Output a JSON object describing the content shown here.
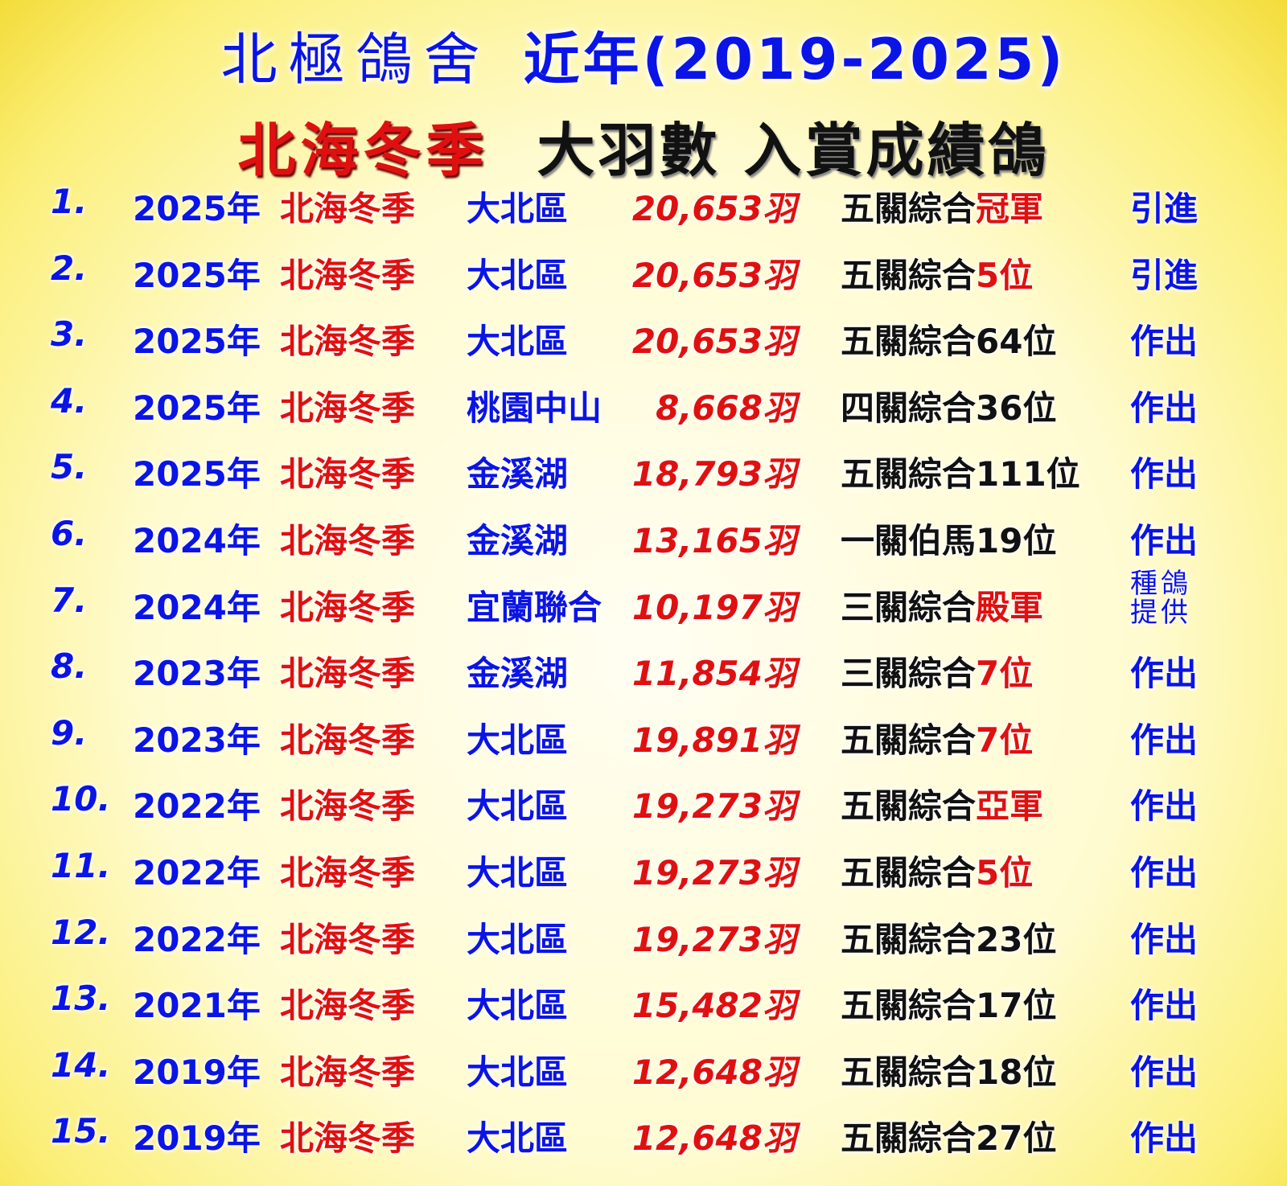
{
  "header": {
    "shop_name": "北極鴿舍",
    "period": "近年(2019-2025)",
    "race_series": "北海冬季",
    "subtitle": "大羽數 入賞成績鴿"
  },
  "colors": {
    "blue": "#0a14e6",
    "red": "#e01010",
    "black": "#111111",
    "background": "#fbef7a"
  },
  "rows": [
    {
      "num": "1.",
      "year": "2025年",
      "race": "北海冬季",
      "region": "大北區",
      "count": "20,653羽",
      "result": "五關綜合",
      "highlight": "冠軍",
      "action": "引進"
    },
    {
      "num": "2.",
      "year": "2025年",
      "race": "北海冬季",
      "region": "大北區",
      "count": "20,653羽",
      "result": "五關綜合",
      "highlight": "5位",
      "action": "引進"
    },
    {
      "num": "3.",
      "year": "2025年",
      "race": "北海冬季",
      "region": "大北區",
      "count": "20,653羽",
      "result": "五關綜合64位",
      "highlight": "",
      "action": "作出"
    },
    {
      "num": "4.",
      "year": "2025年",
      "race": "北海冬季",
      "region": "桃園中山",
      "count": "8,668羽",
      "result": "四關綜合36位",
      "highlight": "",
      "action": "作出"
    },
    {
      "num": "5.",
      "year": "2025年",
      "race": "北海冬季",
      "region": "金溪湖",
      "count": "18,793羽",
      "result": "五關綜合111位",
      "highlight": "",
      "action": "作出"
    },
    {
      "num": "6.",
      "year": "2024年",
      "race": "北海冬季",
      "region": "金溪湖",
      "count": "13,165羽",
      "result": "一關伯馬19位",
      "highlight": "",
      "action": "作出"
    },
    {
      "num": "7.",
      "year": "2024年",
      "race": "北海冬季",
      "region": "宜蘭聯合",
      "count": "10,197羽",
      "result": "三關綜合",
      "highlight": "殿軍",
      "action": "種鴿提供"
    },
    {
      "num": "8.",
      "year": "2023年",
      "race": "北海冬季",
      "region": "金溪湖",
      "count": "11,854羽",
      "result": "三關綜合",
      "highlight": "7位",
      "action": "作出"
    },
    {
      "num": "9.",
      "year": "2023年",
      "race": "北海冬季",
      "region": "大北區",
      "count": "19,891羽",
      "result": "五關綜合",
      "highlight": "7位",
      "action": "作出"
    },
    {
      "num": "10.",
      "year": "2022年",
      "race": "北海冬季",
      "region": "大北區",
      "count": "19,273羽",
      "result": "五關綜合",
      "highlight": "亞軍",
      "action": "作出"
    },
    {
      "num": "11.",
      "year": "2022年",
      "race": "北海冬季",
      "region": "大北區",
      "count": "19,273羽",
      "result": "五關綜合",
      "highlight": "5位",
      "action": "作出"
    },
    {
      "num": "12.",
      "year": "2022年",
      "race": "北海冬季",
      "region": "大北區",
      "count": "19,273羽",
      "result": "五關綜合23位",
      "highlight": "",
      "action": "作出"
    },
    {
      "num": "13.",
      "year": "2021年",
      "race": "北海冬季",
      "region": "大北區",
      "count": "15,482羽",
      "result": "五關綜合17位",
      "highlight": "",
      "action": "作出"
    },
    {
      "num": "14.",
      "year": "2019年",
      "race": "北海冬季",
      "region": "大北區",
      "count": "12,648羽",
      "result": "五關綜合18位",
      "highlight": "",
      "action": "作出"
    },
    {
      "num": "15.",
      "year": "2019年",
      "race": "北海冬季",
      "region": "大北區",
      "count": "12,648羽",
      "result": "五關綜合27位",
      "highlight": "",
      "action": "作出"
    }
  ]
}
